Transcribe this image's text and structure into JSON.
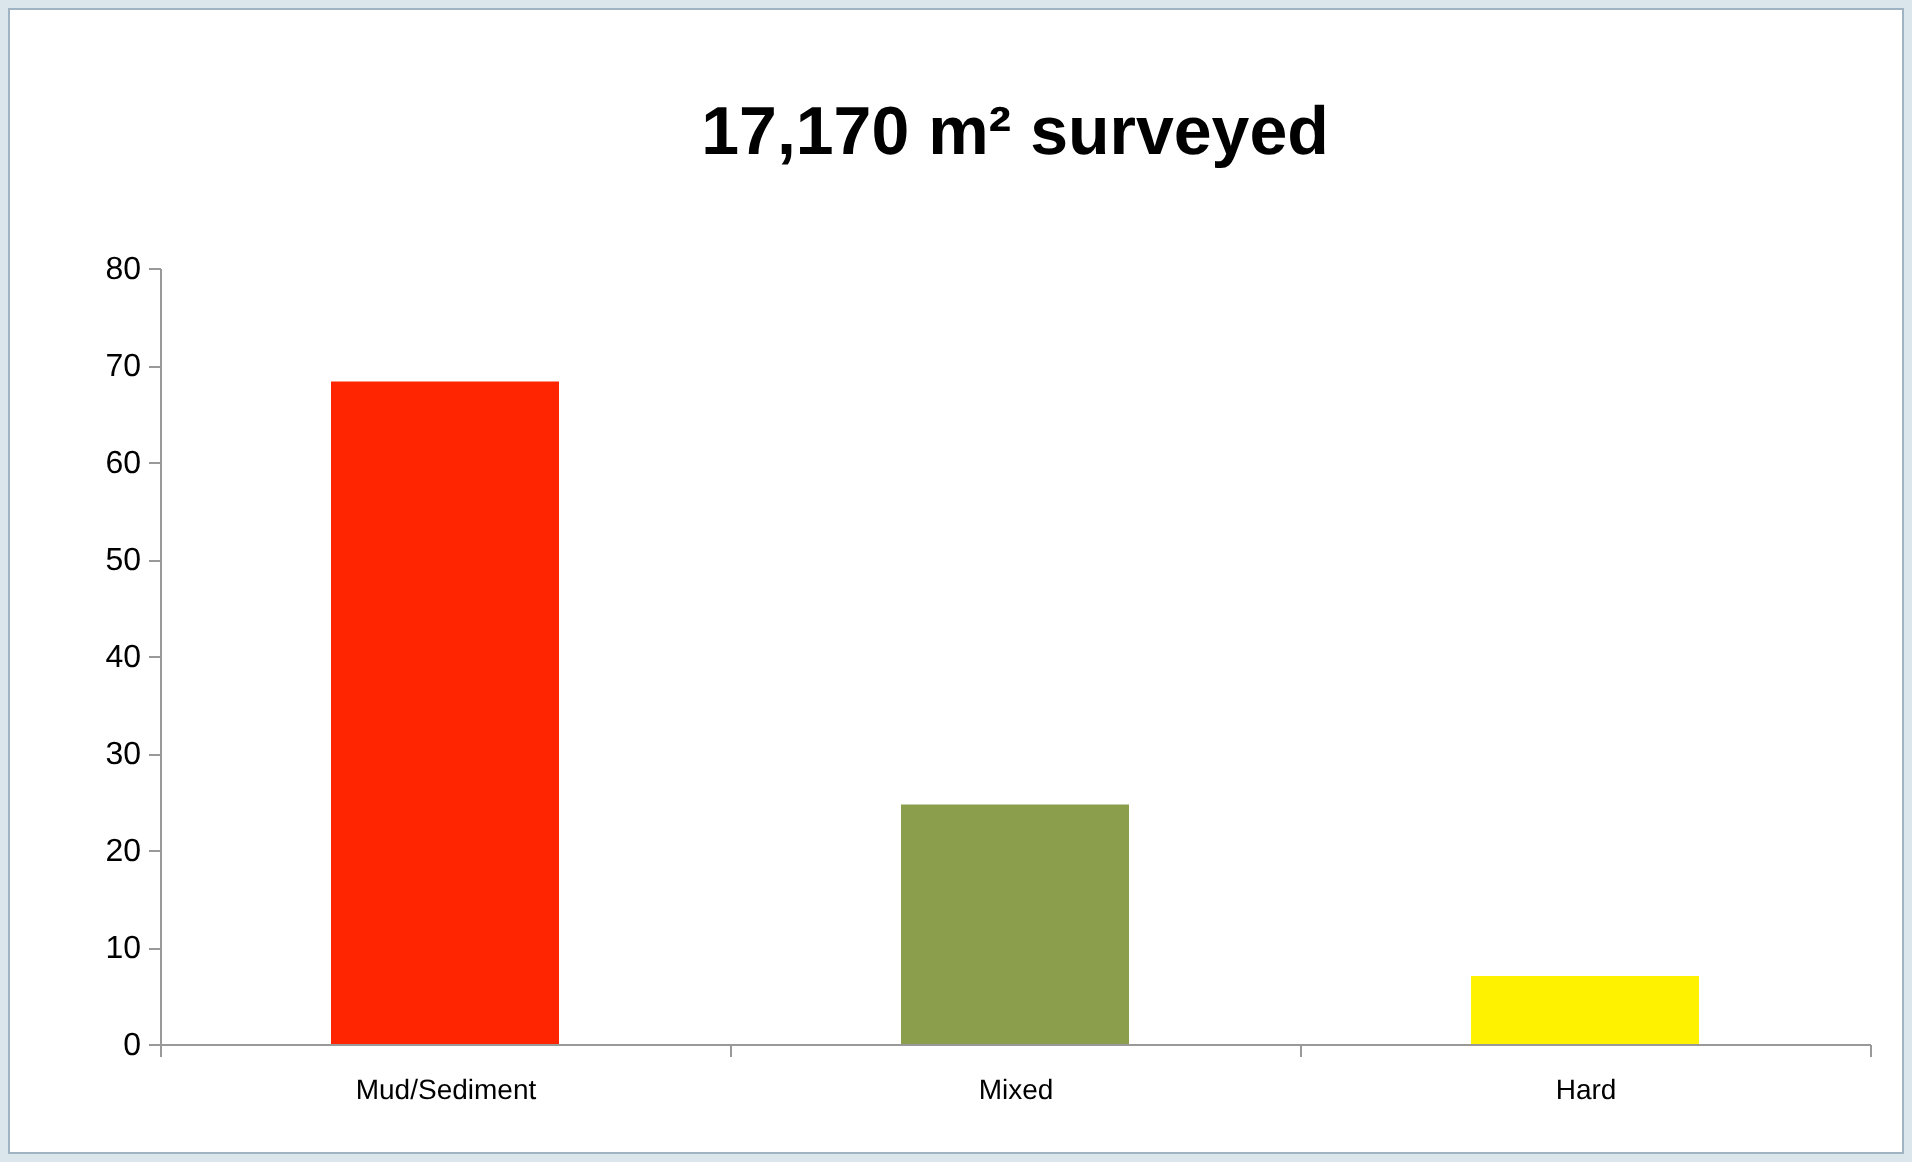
{
  "chart_data": {
    "type": "bar",
    "title": "17,170 m² surveyed",
    "categories": [
      "Mud/Sediment",
      "Mixed",
      "Hard"
    ],
    "values": [
      68.3,
      24.7,
      7.0
    ],
    "colors": [
      "#ff2500",
      "#8a9e4b",
      "#fff200"
    ],
    "ylim": [
      0,
      80
    ],
    "yticks": [
      0,
      10,
      20,
      30,
      40,
      50,
      60,
      70,
      80
    ],
    "grid": false
  }
}
